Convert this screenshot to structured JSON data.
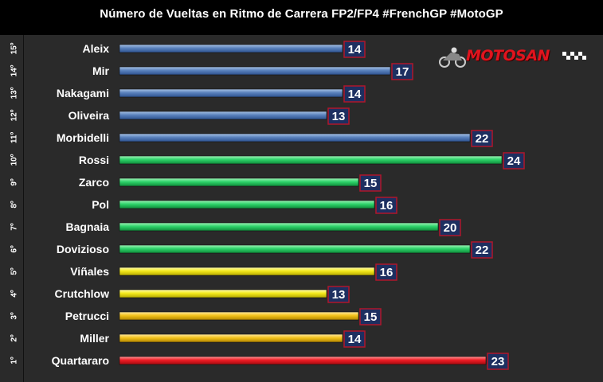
{
  "chart_data": {
    "type": "bar",
    "orientation": "horizontal",
    "title": "Número de Vueltas en Ritmo de Carrera FP2/FP4 #FrenchGP #MotoGP",
    "xlim": [
      0,
      30
    ],
    "grid": false,
    "legend": "none",
    "rows": [
      {
        "position": "15º",
        "rider": "Aleix",
        "laps": 14,
        "color": "blue"
      },
      {
        "position": "14º",
        "rider": "Mir",
        "laps": 17,
        "color": "blue"
      },
      {
        "position": "13º",
        "rider": "Nakagami",
        "laps": 14,
        "color": "blue"
      },
      {
        "position": "12º",
        "rider": "Oliveira",
        "laps": 13,
        "color": "blue"
      },
      {
        "position": "11º",
        "rider": "Morbidelli",
        "laps": 22,
        "color": "blue"
      },
      {
        "position": "10º",
        "rider": "Rossi",
        "laps": 24,
        "color": "green"
      },
      {
        "position": "9º",
        "rider": "Zarco",
        "laps": 15,
        "color": "green"
      },
      {
        "position": "8º",
        "rider": "Pol",
        "laps": 16,
        "color": "green"
      },
      {
        "position": "7º",
        "rider": "Bagnaia",
        "laps": 20,
        "color": "green"
      },
      {
        "position": "6º",
        "rider": "Dovizioso",
        "laps": 22,
        "color": "green"
      },
      {
        "position": "5º",
        "rider": "Viñales",
        "laps": 16,
        "color": "yellow"
      },
      {
        "position": "4º",
        "rider": "Crutchlow",
        "laps": 13,
        "color": "yellow"
      },
      {
        "position": "3º",
        "rider": "Petrucci",
        "laps": 15,
        "color": "gold"
      },
      {
        "position": "2º",
        "rider": "Miller",
        "laps": 14,
        "color": "gold"
      },
      {
        "position": "1º",
        "rider": "Quartararo",
        "laps": 23,
        "color": "red"
      }
    ]
  },
  "logo": {
    "text": "MOTOSAN"
  },
  "colors": {
    "blue": [
      "#a9c3e6",
      "#5a82bd",
      "#2d5290"
    ],
    "green": [
      "#9ff2b7",
      "#2ed36a",
      "#0f8a3a"
    ],
    "yellow": [
      "#fffab0",
      "#f4ea1c",
      "#b5a800"
    ],
    "gold": [
      "#ffe9a0",
      "#f3c21a",
      "#b08400"
    ],
    "red": [
      "#ff9a9a",
      "#ee1b24",
      "#a30a10"
    ]
  }
}
